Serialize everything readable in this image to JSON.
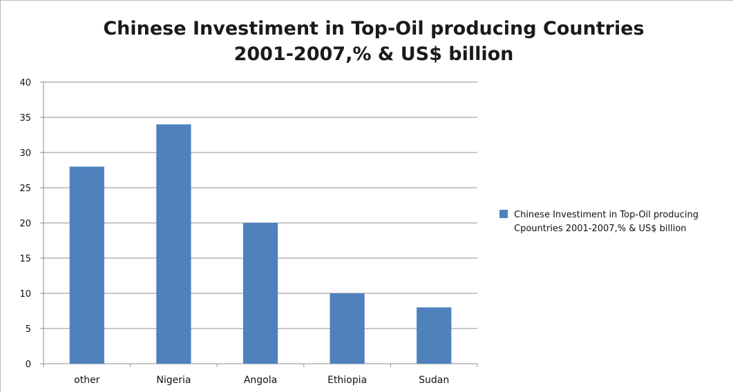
{
  "chart_data": {
    "type": "bar",
    "title": "Chinese Investiment  in Top-Oil producing Countries 2001-2007,% & US$ billion",
    "xlabel": "",
    "ylabel": "",
    "categories": [
      "other",
      "Nigeria",
      "Angola",
      "Ethiopia",
      "Sudan"
    ],
    "series": [
      {
        "name": "Chinese Investiment  in Top-Oil producing Cpountries 2001-2007,% & US$ billion",
        "values": [
          28,
          34,
          20,
          10,
          8
        ],
        "color": "#4f81bd"
      }
    ],
    "ylim": [
      0,
      40
    ],
    "yticks": [
      "0",
      "5",
      "10",
      "15",
      "20",
      "25",
      "30",
      "35",
      "40"
    ],
    "grid": true,
    "legend": "right"
  }
}
